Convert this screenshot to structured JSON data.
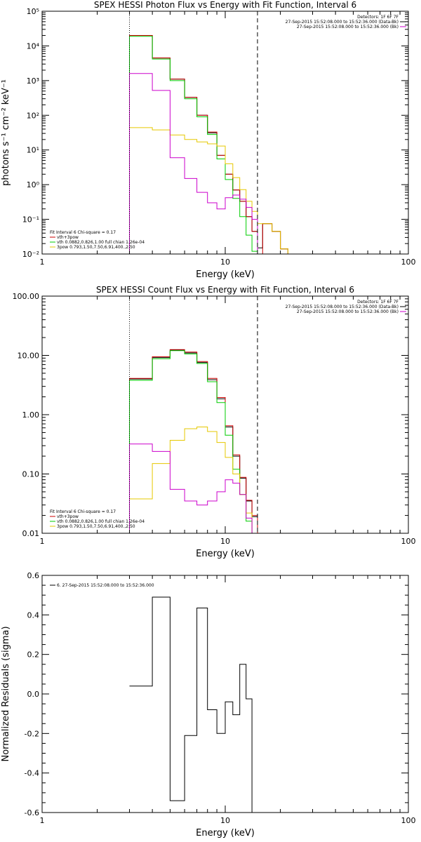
{
  "chart_data": [
    {
      "type": "line",
      "step": true,
      "title": "SPEX HESSI Photon Flux vs Energy with Fit Function, Interval 6",
      "xlabel": "Energy (keV)",
      "ylabel": "photons s⁻¹ cm⁻² keV⁻¹",
      "xscale": "log",
      "yscale": "log",
      "xlim": [
        1,
        100
      ],
      "ylim": [
        0.01,
        100000
      ],
      "x_ticks": [
        1,
        10,
        100
      ],
      "x_tick_labels": [
        "1",
        "10",
        "100"
      ],
      "y_ticks": [
        0.01,
        0.1,
        1,
        10,
        100,
        1000,
        10000,
        100000
      ],
      "y_tick_labels": [
        "10⁻²",
        "10⁻¹",
        "10⁰",
        "10¹",
        "10²",
        "10³",
        "10⁴",
        "10⁵"
      ],
      "vlines": [
        {
          "x": 3,
          "style": "dotted"
        },
        {
          "x": 15,
          "style": "dashed"
        }
      ],
      "legend_right": [
        {
          "text": "Detectors: 1F 6F 7F",
          "color": "",
          "line": false
        },
        {
          "text": "27-Sep-2015 15:52:08.000 to 15:52:36.000 (Data-Bk)",
          "color": "#000000",
          "line": true
        },
        {
          "text": "27-Sep-2015 15:52:08.000 to 15:52:36.000 (Bk)",
          "color": "#cc00cc",
          "line": true
        }
      ],
      "legend_left": [
        {
          "text": "Fit Interval 6   Chi-square = 0.17",
          "color": "",
          "line": false
        },
        {
          "text": "vth+3pow",
          "color": "#cc0000",
          "line": true
        },
        {
          "text": "vth 0.0882,0.826,1.00   full chian 1.26e-04",
          "color": "#00cc00",
          "line": true
        },
        {
          "text": "3pow 0.793,1.50,7.50,6.91,400.,2.50",
          "color": "#e6c800",
          "line": true
        }
      ],
      "edges": [
        3,
        4,
        5,
        6,
        7,
        8,
        9,
        10,
        11,
        12,
        13,
        14,
        15,
        16,
        18,
        20,
        22
      ],
      "series": [
        {
          "color": "#000000",
          "values": [
            20000,
            4500,
            1100,
            330,
            100,
            31,
            7,
            2,
            0.7,
            0.33,
            0.12,
            0.045,
            0.015,
            0.075,
            0.045,
            0.014,
            0.009
          ]
        },
        {
          "color": "#cc0000",
          "values": [
            20000,
            4500,
            1100,
            330,
            100,
            33,
            7,
            2,
            0.7,
            0.33,
            0.12,
            0.045,
            null,
            0.075,
            0.045,
            0.014,
            null
          ]
        },
        {
          "color": "#00cc00",
          "values": [
            19000,
            4200,
            1000,
            300,
            90,
            28,
            5.5,
            1.4,
            0.4,
            0.12,
            0.035,
            0.012,
            0.005,
            null,
            null,
            null,
            null
          ]
        },
        {
          "color": "#e6c800",
          "values": [
            44,
            38,
            27,
            20,
            17,
            15,
            13,
            4,
            1.6,
            0.72,
            0.33,
            0.17,
            0.075,
            0.075,
            0.045,
            0.014,
            0.009
          ]
        },
        {
          "color": "#cc00cc",
          "values": [
            1600,
            520,
            6,
            1.5,
            0.6,
            0.3,
            0.2,
            0.42,
            0.5,
            0.38,
            0.22,
            0.1,
            0.004,
            null,
            null,
            null,
            null
          ]
        }
      ]
    },
    {
      "type": "line",
      "step": true,
      "title": "SPEX HESSI Count Flux vs Energy with Fit Function, Interval 6",
      "xlabel": "Energy (keV)",
      "ylabel": "",
      "xscale": "log",
      "yscale": "log",
      "xlim": [
        1,
        100
      ],
      "ylim": [
        0.01,
        100
      ],
      "x_ticks": [
        1,
        10,
        100
      ],
      "x_tick_labels": [
        "1",
        "10",
        "100"
      ],
      "y_ticks": [
        0.01,
        0.1,
        1,
        10,
        100
      ],
      "y_tick_labels": [
        "0.01",
        "0.10",
        "1.00",
        "10.00",
        "100.00"
      ],
      "vlines": [
        {
          "x": 3,
          "style": "dotted"
        },
        {
          "x": 15,
          "style": "dashed"
        }
      ],
      "legend_right": [
        {
          "text": "Detectors: 1F 6F 7F",
          "color": "",
          "line": false
        },
        {
          "text": "27-Sep-2015 15:52:08.000 to 15:52:36.000 (Data-Bk)",
          "color": "#000000",
          "line": true
        },
        {
          "text": "27-Sep-2015 15:52:08.000 to 15:52:36.000 (Bk)",
          "color": "#cc00cc",
          "line": true
        }
      ],
      "legend_left": [
        {
          "text": "Fit Interval 6   Chi-square = 0.17",
          "color": "",
          "line": false
        },
        {
          "text": "vth+3pow",
          "color": "#cc0000",
          "line": true
        },
        {
          "text": "vth 0.0882,0.826,1.00   full chian 1.26e-04",
          "color": "#00cc00",
          "line": true
        },
        {
          "text": "3pow 0.793,1.50,7.50,6.91,400.,2.50",
          "color": "#e6c800",
          "line": true
        }
      ],
      "edges": [
        3,
        4,
        5,
        6,
        7,
        8,
        9,
        10,
        11,
        12,
        13,
        14,
        15
      ],
      "series": [
        {
          "color": "#000000",
          "values": [
            4.0,
            9.2,
            12.3,
            11.0,
            7.6,
            3.9,
            1.85,
            0.62,
            0.2,
            0.085,
            0.035,
            0.019
          ]
        },
        {
          "color": "#cc0000",
          "values": [
            4.1,
            9.5,
            12.5,
            11.4,
            7.9,
            4.1,
            1.95,
            0.65,
            0.21,
            0.088,
            0.036,
            0.02
          ]
        },
        {
          "color": "#00cc00",
          "values": [
            3.8,
            8.8,
            12.0,
            10.6,
            7.3,
            3.6,
            1.6,
            0.45,
            0.12,
            0.045,
            0.016,
            0.008
          ]
        },
        {
          "color": "#e6c800",
          "values": [
            0.038,
            0.15,
            0.37,
            0.58,
            0.62,
            0.52,
            0.34,
            0.19,
            0.1,
            0.045,
            0.022,
            0.01
          ]
        },
        {
          "color": "#cc00cc",
          "values": [
            0.32,
            0.24,
            0.055,
            0.035,
            0.03,
            0.035,
            0.05,
            0.08,
            0.07,
            0.045,
            0.018,
            0.004
          ]
        }
      ]
    },
    {
      "type": "line",
      "step": true,
      "title": "",
      "xlabel": "Energy (keV)",
      "ylabel": "Normalized Residuals (sigma)",
      "xscale": "log",
      "yscale": "linear",
      "xlim": [
        1,
        100
      ],
      "ylim": [
        -0.6,
        0.6
      ],
      "x_ticks": [
        1,
        10,
        100
      ],
      "x_tick_labels": [
        "1",
        "10",
        "100"
      ],
      "y_ticks": [
        -0.6,
        -0.4,
        -0.2,
        0.0,
        0.2,
        0.4,
        0.6
      ],
      "y_tick_labels": [
        "-0.6",
        "-0.4",
        "-0.2",
        "0.0",
        "0.2",
        "0.4",
        "0.6"
      ],
      "vlines": [],
      "legend_right": [],
      "legend_left": [
        {
          "text": "6. 27-Sep-2015 15:52:08.000 to 15:52:36.000",
          "color": "#000000",
          "line": true
        }
      ],
      "edges": [
        3,
        4,
        5,
        6,
        7,
        8,
        9,
        10,
        11,
        12,
        13,
        14,
        15
      ],
      "series": [
        {
          "color": "#000000",
          "values": [
            0.04,
            0.49,
            -0.54,
            -0.21,
            0.435,
            -0.08,
            -0.2,
            -0.04,
            -0.105,
            0.15,
            -0.025,
            -0.6
          ]
        }
      ]
    }
  ]
}
